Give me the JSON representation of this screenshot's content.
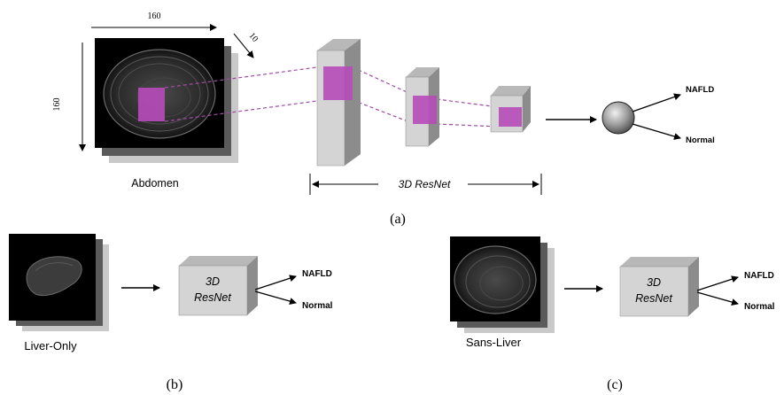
{
  "panel_a": {
    "dim_width": "160",
    "dim_height": "160",
    "dim_depth": "10",
    "input_label": "Abdomen",
    "network_label": "3D ResNet",
    "output_top": "NAFLD",
    "output_bottom": "Normal",
    "caption": "(a)"
  },
  "panel_b": {
    "input_label": "Liver-Only",
    "network_line1": "3D",
    "network_line2": "ResNet",
    "output_top": "NAFLD",
    "output_bottom": "Normal",
    "caption": "(b)"
  },
  "panel_c": {
    "input_label": "Sans-Liver",
    "network_line1": "3D",
    "network_line2": "ResNet",
    "output_top": "NAFLD",
    "output_bottom": "Normal",
    "caption": "(c)"
  },
  "colors": {
    "highlight": "#b54bb8",
    "dashed": "#a24aa6",
    "box_front": "#d4d4d4",
    "box_side": "#8c8c8c",
    "box_top": "#b8b8b8"
  }
}
